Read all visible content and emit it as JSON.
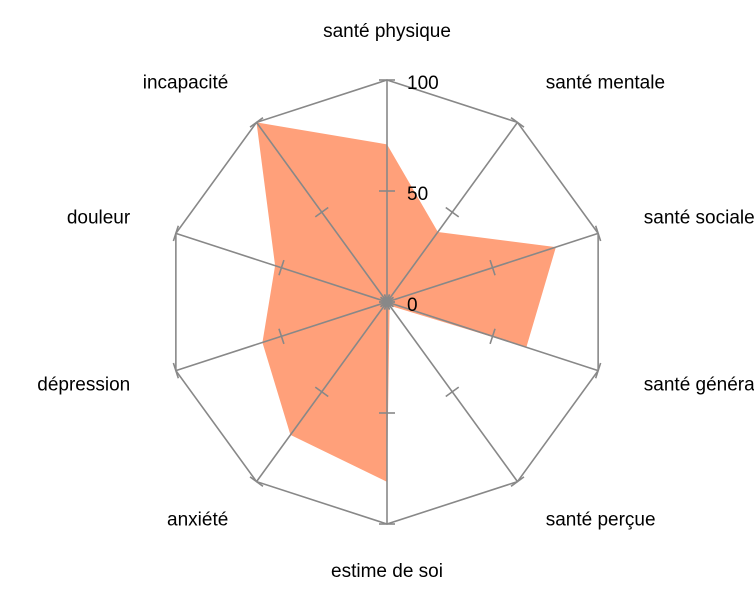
{
  "chart_data": {
    "type": "radar",
    "categories": [
      "santé physique",
      "santé mentale",
      "santé sociale",
      "santé générale",
      "santé perçue",
      "estime de soi",
      "anxiété",
      "dépression",
      "douleur",
      "incapacité"
    ],
    "values": [
      71,
      39,
      80,
      66,
      2,
      81,
      74,
      59,
      53,
      100
    ],
    "color": "#ffa07a",
    "ylim": [
      0,
      100
    ],
    "yticks": [
      0,
      50,
      100
    ]
  }
}
